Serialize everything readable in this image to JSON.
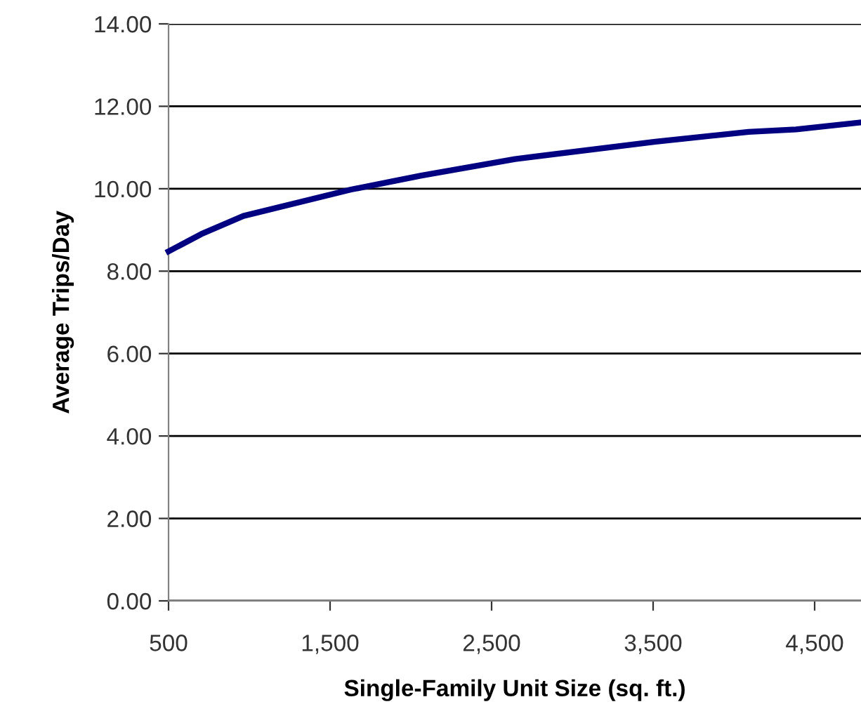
{
  "chart_data": {
    "type": "line",
    "xlabel": "Single-Family Unit Size (sq. ft.)",
    "ylabel": "Average Trips/Day",
    "x": [
      500,
      703,
      964,
      1630,
      2065,
      2645,
      3514,
      4091,
      4384,
      4787
    ],
    "series": [
      {
        "color": "#000080",
        "values": [
          8.48,
          8.9,
          9.34,
          9.98,
          10.32,
          10.72,
          11.14,
          11.38,
          11.44,
          11.61
        ]
      }
    ],
    "xlim": [
      500,
      4787
    ],
    "xticks": [
      {
        "value": 500,
        "label": "500"
      },
      {
        "value": 1500,
        "label": "1,500"
      },
      {
        "value": 2500,
        "label": "2,500"
      },
      {
        "value": 3500,
        "label": "3,500"
      },
      {
        "value": 4500,
        "label": "4,500"
      }
    ],
    "ylim": [
      0,
      14
    ],
    "yticks": [
      {
        "value": 0,
        "label": "0.00"
      },
      {
        "value": 2,
        "label": "2.00"
      },
      {
        "value": 4,
        "label": "4.00"
      },
      {
        "value": 6,
        "label": "6.00"
      },
      {
        "value": 8,
        "label": "8.00"
      },
      {
        "value": 10,
        "label": "10.00"
      },
      {
        "value": 12,
        "label": "12.00"
      },
      {
        "value": 14,
        "label": "14.00"
      }
    ],
    "grid": "y",
    "marker": "none",
    "line_style": "solid",
    "legend": false
  }
}
